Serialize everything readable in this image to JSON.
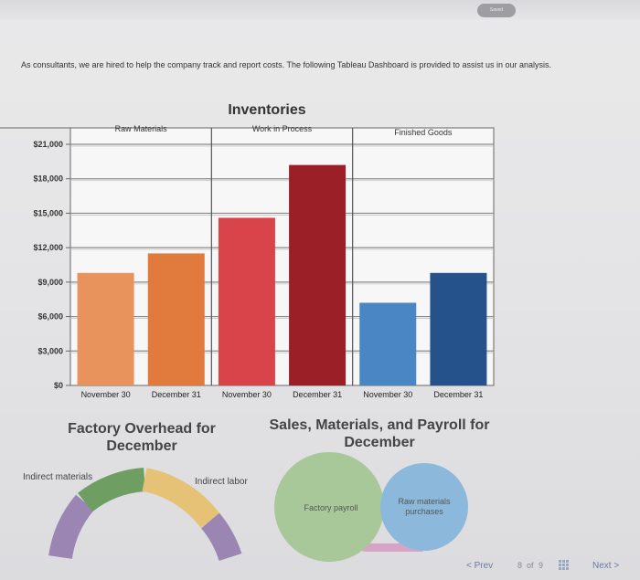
{
  "header": {
    "button_label": "Saved"
  },
  "intro_text": "As consultants, we are hired to help the company track and report costs. The following Tableau Dashboard is provided to assist us in our analysis.",
  "chart_data": {
    "type": "bar",
    "title": "Inventories",
    "panels": [
      "Raw Materials",
      "Work in Process",
      "Finished Goods"
    ],
    "categories": [
      "November 30",
      "December 31"
    ],
    "series": [
      {
        "name": "Raw Materials",
        "values": [
          9800,
          11500
        ],
        "colors": [
          "#e9935c",
          "#e07a3d"
        ]
      },
      {
        "name": "Work in Process",
        "values": [
          14600,
          19200
        ],
        "colors": [
          "#d9434a",
          "#9b1f26"
        ]
      },
      {
        "name": "Finished Goods",
        "values": [
          7200,
          9800
        ],
        "colors": [
          "#4a86c4",
          "#25528a"
        ]
      }
    ],
    "y_ticks": [
      "$0",
      "$3,000",
      "$6,000",
      "$9,000",
      "$12,000",
      "$15,000",
      "$18,000",
      "$21,000"
    ],
    "ylim": [
      0,
      21000
    ],
    "grid": true
  },
  "overhead": {
    "title_line1": "Factory Overhead for",
    "title_line2": "December",
    "labels": [
      "Indirect materials",
      "Indirect labor"
    ],
    "colors": {
      "green": "#6f9e63",
      "tan": "#e6c276",
      "purple": "#9b86b3"
    }
  },
  "sales": {
    "title_line1": "Sales, Materials, and Payroll for",
    "title_line2": "December",
    "bubbles": [
      {
        "label": "Factory payroll",
        "color": "#a8c89a"
      },
      {
        "label_line1": "Raw materials",
        "label_line2": "purchases",
        "color": "#8cb9db"
      }
    ],
    "bar_color": "#d7a4c6"
  },
  "pager": {
    "prev": "< Prev",
    "page": "8",
    "of": "of",
    "total": "9",
    "next": "Next >"
  }
}
